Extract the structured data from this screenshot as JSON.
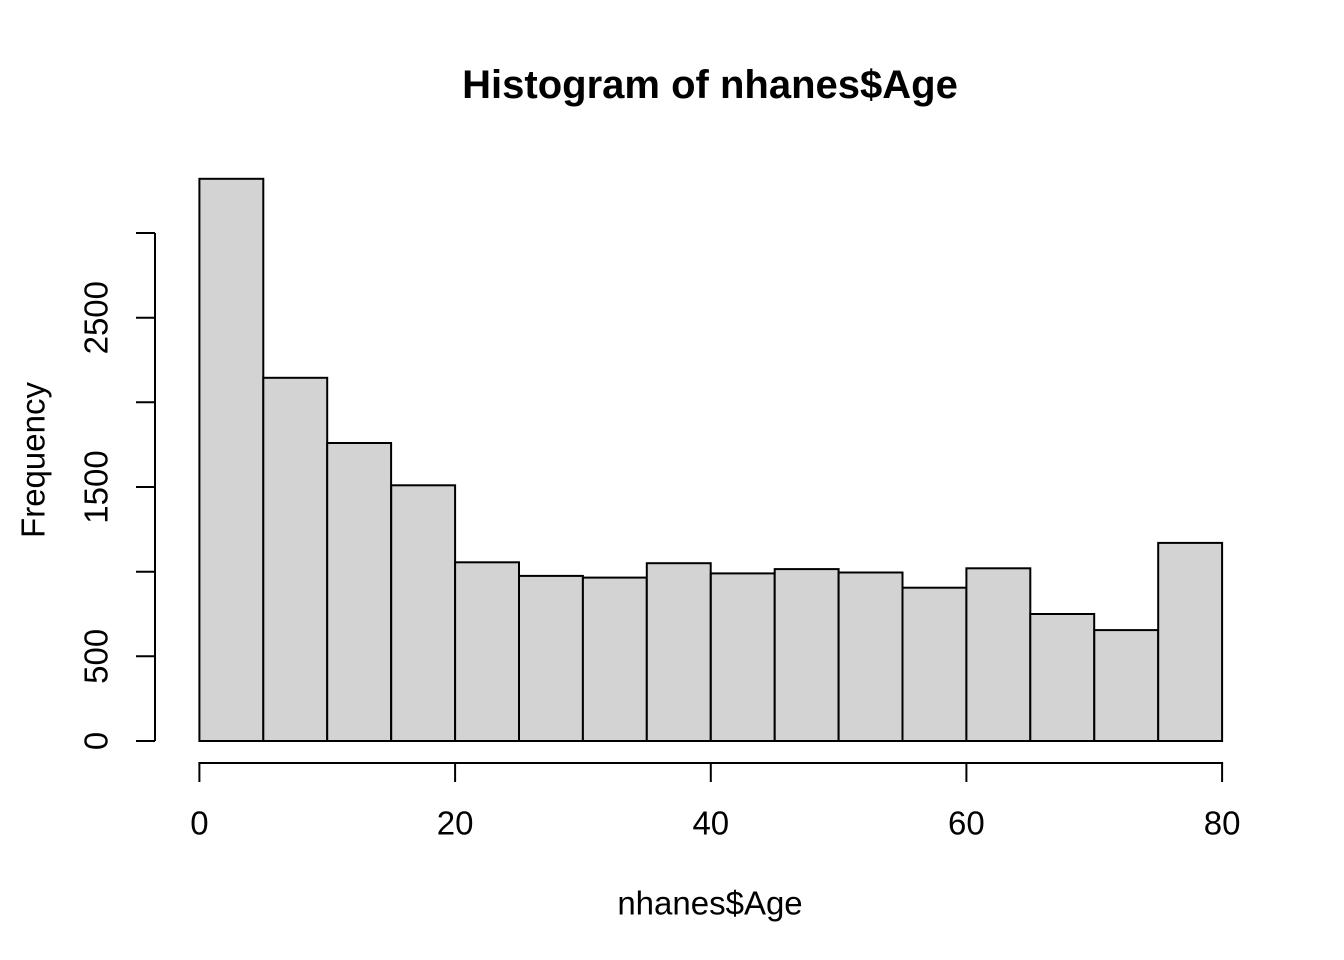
{
  "chart_data": {
    "type": "bar",
    "subtype": "histogram",
    "title": "Histogram of nhanes$Age",
    "xlabel": "nhanes$Age",
    "ylabel": "Frequency",
    "bin_width": 5,
    "bin_edges": [
      0,
      5,
      10,
      15,
      20,
      25,
      30,
      35,
      40,
      45,
      50,
      55,
      60,
      65,
      70,
      75,
      80
    ],
    "values": [
      3320,
      2145,
      1760,
      1510,
      1055,
      975,
      965,
      1050,
      990,
      1015,
      995,
      905,
      1020,
      750,
      655,
      1170
    ],
    "xlim": [
      0,
      80
    ],
    "ylim": [
      0,
      3320
    ],
    "y_axis_range": [
      0,
      3000
    ],
    "x_ticks": [
      {
        "value": 0,
        "label": "0"
      },
      {
        "value": 20,
        "label": "20"
      },
      {
        "value": 40,
        "label": "40"
      },
      {
        "value": 60,
        "label": "60"
      },
      {
        "value": 80,
        "label": "80"
      }
    ],
    "y_ticks": [
      {
        "value": 0,
        "label": "0"
      },
      {
        "value": 500,
        "label": "500"
      },
      {
        "value": 1000,
        "label": ""
      },
      {
        "value": 1500,
        "label": "1500"
      },
      {
        "value": 2000,
        "label": ""
      },
      {
        "value": 2500,
        "label": "2500"
      },
      {
        "value": 3000,
        "label": ""
      }
    ],
    "legend": null,
    "grid": false,
    "colors": {
      "bar_fill": "#d3d3d3",
      "bar_border": "#000000",
      "axis": "#000000",
      "text": "#000000",
      "background": "#ffffff"
    }
  }
}
